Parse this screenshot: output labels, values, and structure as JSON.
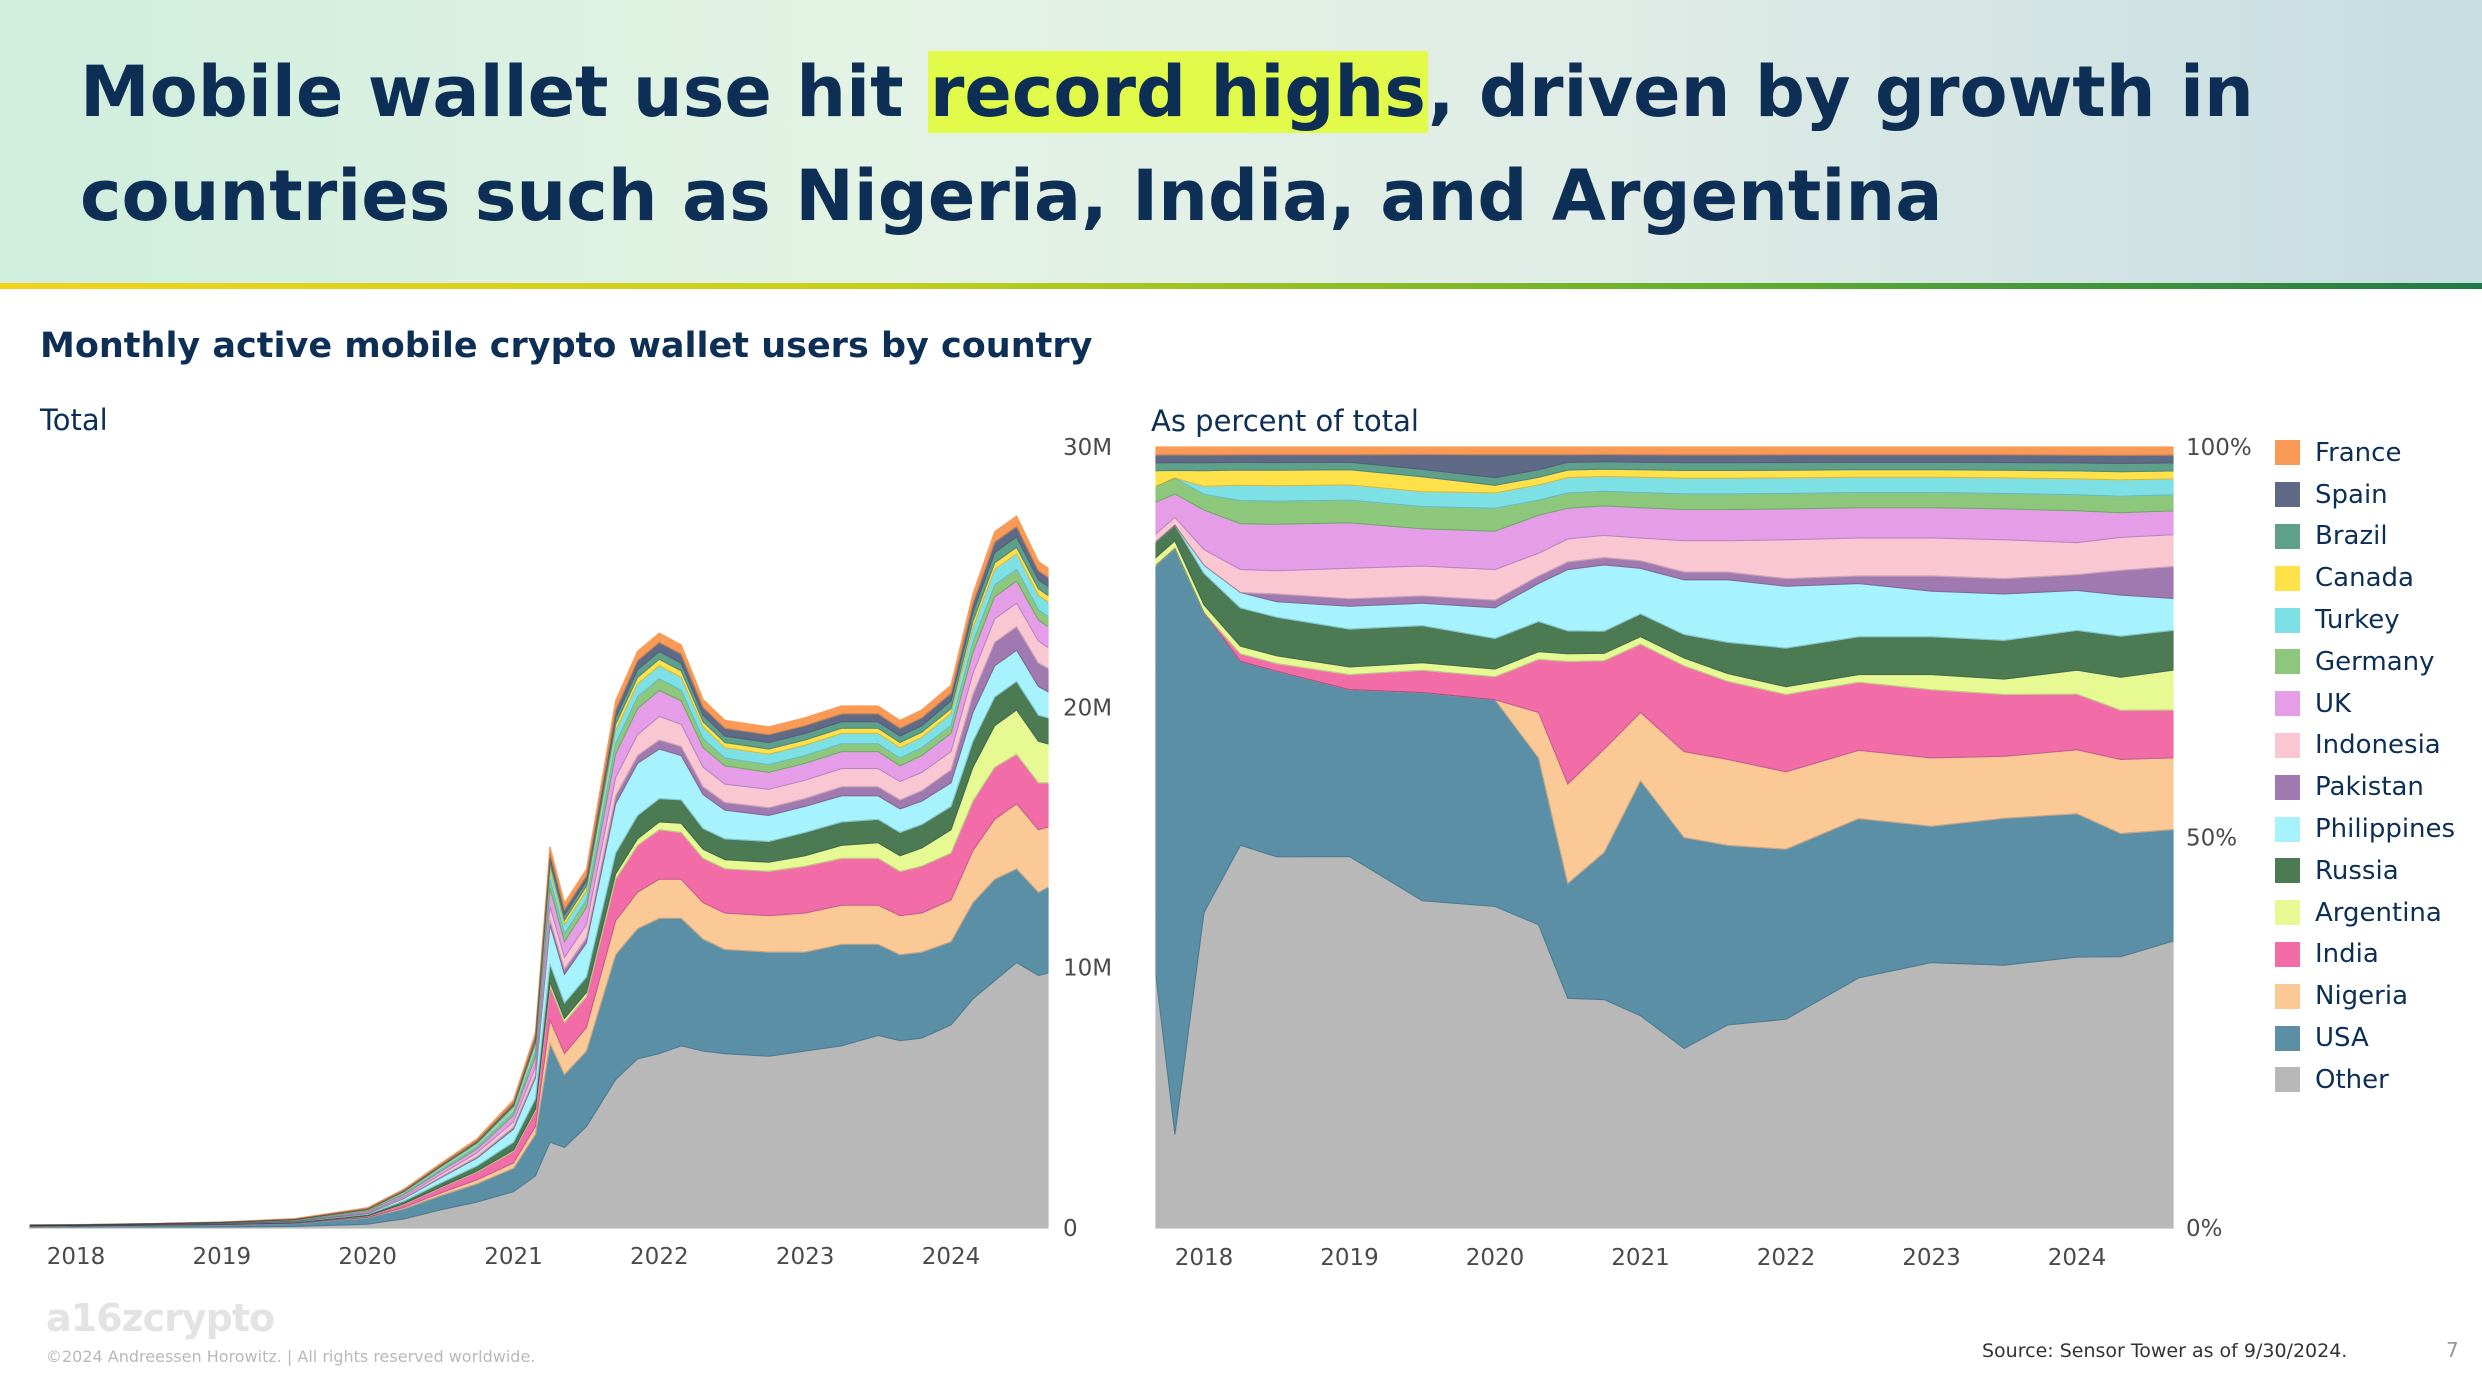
{
  "headline": {
    "before": "Mobile wallet use hit ",
    "highlight": "record highs",
    "after": ", driven by growth in countries such as Nigeria, India, and Argentina"
  },
  "section_title": "Monthly active mobile crypto wallet users by country",
  "footer": {
    "logo": "a16zcrypto",
    "copyright": "©2024 Andreessen Horowitz.  |  All rights reserved worldwide.",
    "source": "Source: Sensor Tower as of 9/30/2024.",
    "page": "7"
  },
  "chart_data": [
    {
      "type": "area",
      "stacked": true,
      "panel_label": "Total",
      "x": [
        2017.6,
        2018.0,
        2018.5,
        2019.0,
        2019.5,
        2020.0,
        2020.25,
        2020.5,
        2020.75,
        2021.0,
        2021.15,
        2021.25,
        2021.35,
        2021.5,
        2021.7,
        2021.85,
        2022.0,
        2022.15,
        2022.3,
        2022.45,
        2022.75,
        2023.0,
        2023.25,
        2023.5,
        2023.65,
        2023.8,
        2024.0,
        2024.15,
        2024.3,
        2024.45,
        2024.6,
        2024.67
      ],
      "xticks": [
        "2018",
        "2019",
        "2020",
        "2021",
        "2022",
        "2023",
        "2024"
      ],
      "yticks": [
        "0",
        "10M",
        "20M",
        "30M"
      ],
      "ylim": [
        0,
        30
      ],
      "y_unit": "millions",
      "y_axis_side": "right",
      "series": [
        {
          "name": "Other",
          "color": "#b8b8b8",
          "values": [
            0.02,
            0.02,
            0.03,
            0.04,
            0.06,
            0.15,
            0.35,
            0.7,
            1.0,
            1.4,
            2.0,
            3.3,
            3.1,
            3.9,
            5.7,
            6.5,
            6.7,
            7.0,
            6.8,
            6.7,
            6.6,
            6.8,
            7.0,
            7.4,
            7.2,
            7.3,
            7.8,
            8.8,
            9.5,
            10.2,
            9.7,
            9.8
          ]
        },
        {
          "name": "USA",
          "color": "#5b8fa6",
          "values": [
            0.05,
            0.06,
            0.07,
            0.09,
            0.12,
            0.25,
            0.4,
            0.55,
            0.7,
            0.9,
            1.6,
            3.8,
            2.8,
            2.9,
            4.8,
            5.0,
            5.2,
            4.9,
            4.3,
            4.0,
            4.0,
            3.8,
            3.9,
            3.5,
            3.3,
            3.3,
            3.2,
            3.7,
            3.9,
            3.6,
            3.2,
            3.3
          ]
        },
        {
          "name": "Nigeria",
          "color": "#fbc995",
          "values": [
            0.0,
            0.0,
            0.0,
            0.0,
            0.0,
            0.01,
            0.05,
            0.1,
            0.15,
            0.2,
            0.3,
            0.9,
            0.8,
            0.9,
            1.3,
            1.4,
            1.5,
            1.5,
            1.4,
            1.4,
            1.4,
            1.5,
            1.5,
            1.5,
            1.5,
            1.5,
            1.6,
            2.0,
            2.3,
            2.5,
            2.4,
            2.3
          ]
        },
        {
          "name": "India",
          "color": "#f26ca7",
          "values": [
            0.0,
            0.0,
            0.01,
            0.01,
            0.02,
            0.05,
            0.12,
            0.2,
            0.3,
            0.45,
            0.6,
            1.3,
            1.2,
            1.2,
            1.6,
            1.8,
            1.9,
            1.8,
            1.7,
            1.7,
            1.7,
            1.8,
            1.8,
            1.8,
            1.7,
            1.8,
            1.8,
            1.9,
            2.0,
            1.9,
            1.8,
            1.7
          ]
        },
        {
          "name": "Argentina",
          "color": "#e7f993",
          "values": [
            0.0,
            0.0,
            0.0,
            0.0,
            0.0,
            0.01,
            0.02,
            0.03,
            0.04,
            0.05,
            0.07,
            0.15,
            0.15,
            0.15,
            0.2,
            0.25,
            0.3,
            0.35,
            0.35,
            0.35,
            0.35,
            0.4,
            0.5,
            0.6,
            0.6,
            0.7,
            0.9,
            1.3,
            1.6,
            1.7,
            1.6,
            1.5
          ]
        },
        {
          "name": "Russia",
          "color": "#4c7a52",
          "values": [
            0.02,
            0.02,
            0.02,
            0.03,
            0.04,
            0.06,
            0.1,
            0.15,
            0.2,
            0.3,
            0.4,
            0.7,
            0.6,
            0.6,
            0.8,
            0.9,
            0.9,
            0.9,
            0.8,
            0.8,
            0.8,
            0.9,
            0.9,
            0.9,
            0.9,
            0.9,
            0.9,
            1.0,
            1.1,
            1.1,
            1.0,
            1.0
          ]
        },
        {
          "name": "Philippines",
          "color": "#a6f2fd",
          "values": [
            0.0,
            0.0,
            0.0,
            0.0,
            0.01,
            0.03,
            0.1,
            0.2,
            0.3,
            0.5,
            0.8,
            1.5,
            1.1,
            1.3,
            1.9,
            2.0,
            1.9,
            1.7,
            1.3,
            1.1,
            1.0,
            1.0,
            1.0,
            0.9,
            0.9,
            0.9,
            0.9,
            1.1,
            1.2,
            1.2,
            1.1,
            1.0
          ]
        },
        {
          "name": "Pakistan",
          "color": "#9f79af",
          "values": [
            0.0,
            0.0,
            0.0,
            0.0,
            0.0,
            0.01,
            0.02,
            0.03,
            0.05,
            0.08,
            0.1,
            0.2,
            0.2,
            0.2,
            0.3,
            0.3,
            0.35,
            0.35,
            0.3,
            0.3,
            0.3,
            0.3,
            0.35,
            0.35,
            0.35,
            0.4,
            0.5,
            0.7,
            0.9,
            0.9,
            0.9,
            0.9
          ]
        },
        {
          "name": "Indonesia",
          "color": "#f9c6d2",
          "values": [
            0.0,
            0.0,
            0.0,
            0.01,
            0.01,
            0.03,
            0.05,
            0.1,
            0.15,
            0.2,
            0.3,
            0.5,
            0.45,
            0.5,
            0.7,
            0.8,
            0.9,
            0.85,
            0.75,
            0.7,
            0.7,
            0.7,
            0.7,
            0.7,
            0.7,
            0.7,
            0.7,
            0.8,
            0.9,
            0.9,
            0.85,
            0.8
          ]
        },
        {
          "name": "UK",
          "color": "#e59de8",
          "values": [
            0.01,
            0.01,
            0.02,
            0.02,
            0.03,
            0.05,
            0.08,
            0.12,
            0.15,
            0.25,
            0.4,
            0.7,
            0.6,
            0.65,
            0.9,
            1.0,
            1.0,
            0.9,
            0.75,
            0.7,
            0.65,
            0.65,
            0.65,
            0.65,
            0.6,
            0.65,
            0.7,
            0.8,
            0.85,
            0.85,
            0.8,
            0.8
          ]
        },
        {
          "name": "Germany",
          "color": "#8dc77c",
          "values": [
            0.01,
            0.01,
            0.01,
            0.01,
            0.02,
            0.03,
            0.04,
            0.06,
            0.08,
            0.12,
            0.2,
            0.35,
            0.3,
            0.3,
            0.4,
            0.45,
            0.45,
            0.4,
            0.35,
            0.3,
            0.3,
            0.3,
            0.3,
            0.3,
            0.3,
            0.3,
            0.3,
            0.4,
            0.45,
            0.45,
            0.4,
            0.4
          ]
        },
        {
          "name": "Turkey",
          "color": "#7de0e5",
          "values": [
            0.0,
            0.0,
            0.0,
            0.0,
            0.01,
            0.02,
            0.05,
            0.08,
            0.1,
            0.15,
            0.25,
            0.4,
            0.35,
            0.35,
            0.5,
            0.5,
            0.5,
            0.5,
            0.45,
            0.4,
            0.4,
            0.4,
            0.4,
            0.4,
            0.4,
            0.4,
            0.45,
            0.55,
            0.6,
            0.6,
            0.55,
            0.55
          ]
        },
        {
          "name": "Canada",
          "color": "#ffe14a",
          "values": [
            0.0,
            0.0,
            0.0,
            0.01,
            0.01,
            0.02,
            0.03,
            0.04,
            0.05,
            0.08,
            0.12,
            0.2,
            0.18,
            0.18,
            0.25,
            0.25,
            0.25,
            0.25,
            0.2,
            0.2,
            0.2,
            0.2,
            0.2,
            0.2,
            0.2,
            0.2,
            0.2,
            0.25,
            0.25,
            0.25,
            0.25,
            0.25
          ]
        },
        {
          "name": "Brazil",
          "color": "#5fa08a",
          "values": [
            0.0,
            0.0,
            0.0,
            0.0,
            0.0,
            0.01,
            0.02,
            0.03,
            0.04,
            0.06,
            0.1,
            0.2,
            0.2,
            0.2,
            0.25,
            0.3,
            0.3,
            0.3,
            0.25,
            0.25,
            0.25,
            0.25,
            0.25,
            0.25,
            0.25,
            0.25,
            0.3,
            0.35,
            0.4,
            0.4,
            0.35,
            0.35
          ]
        },
        {
          "name": "Spain",
          "color": "#5f6b86",
          "values": [
            0.0,
            0.0,
            0.0,
            0.0,
            0.01,
            0.02,
            0.03,
            0.04,
            0.05,
            0.08,
            0.12,
            0.2,
            0.2,
            0.2,
            0.3,
            0.35,
            0.35,
            0.35,
            0.3,
            0.3,
            0.3,
            0.3,
            0.3,
            0.3,
            0.3,
            0.3,
            0.3,
            0.35,
            0.4,
            0.4,
            0.35,
            0.35
          ]
        },
        {
          "name": "France",
          "color": "#f99a57",
          "values": [
            0.01,
            0.01,
            0.01,
            0.01,
            0.02,
            0.03,
            0.04,
            0.05,
            0.07,
            0.1,
            0.15,
            0.25,
            0.25,
            0.25,
            0.35,
            0.35,
            0.35,
            0.35,
            0.3,
            0.3,
            0.3,
            0.3,
            0.3,
            0.3,
            0.3,
            0.3,
            0.3,
            0.35,
            0.4,
            0.4,
            0.35,
            0.35
          ]
        }
      ]
    },
    {
      "type": "area",
      "stacked": true,
      "normalized": true,
      "panel_label": "As percent of total",
      "x": [
        2017.6,
        2017.8,
        2018.0,
        2018.25,
        2018.5,
        2019.0,
        2019.5,
        2020.0,
        2020.3,
        2020.5,
        2020.75,
        2021.0,
        2021.3,
        2021.6,
        2022.0,
        2022.5,
        2023.0,
        2023.5,
        2024.0,
        2024.3,
        2024.67
      ],
      "xticks": [
        "2018",
        "2019",
        "2020",
        "2021",
        "2022",
        "2023",
        "2024"
      ],
      "yticks": [
        "0%",
        "50%",
        "100%"
      ],
      "ylim": [
        0,
        100
      ],
      "y_unit": "percent",
      "y_axis_side": "right",
      "legend_position": "right",
      "series": [
        {
          "name": "Other",
          "color": "#b8b8b8",
          "values": [
            32,
            12,
            40,
            50,
            48,
            49,
            44,
            42,
            40,
            30,
            31,
            28,
            23,
            26,
            27,
            33,
            35,
            34,
            34,
            33,
            36
          ]
        },
        {
          "name": "USA",
          "color": "#5b8fa6",
          "values": [
            52,
            75,
            38,
            24,
            24,
            22,
            28,
            27,
            22,
            15,
            20,
            31,
            27,
            23,
            22,
            21,
            18,
            19,
            18,
            15,
            14
          ]
        },
        {
          "name": "Nigeria",
          "color": "#fbc995",
          "values": [
            0,
            0,
            0,
            0,
            0,
            0,
            0,
            0,
            6,
            13,
            14,
            9,
            11,
            11,
            10,
            9,
            9,
            8,
            8,
            9,
            9
          ]
        },
        {
          "name": "India",
          "color": "#f26ca7",
          "values": [
            0,
            0,
            0,
            1,
            1,
            2,
            3,
            3,
            7,
            16,
            12,
            9,
            11,
            10,
            10,
            9,
            9,
            8,
            7,
            6,
            6
          ]
        },
        {
          "name": "Argentina",
          "color": "#e7f993",
          "values": [
            1,
            1,
            1,
            1,
            1,
            1,
            1,
            1,
            1,
            1,
            1,
            1,
            1,
            1,
            1,
            1,
            2,
            2,
            3,
            4,
            5
          ]
        },
        {
          "name": "Russia",
          "color": "#4c7a52",
          "values": [
            2,
            2,
            4,
            5,
            5,
            5,
            5,
            4,
            4,
            3,
            3,
            3,
            3,
            4,
            5,
            5,
            5,
            5,
            5,
            5,
            5
          ]
        },
        {
          "name": "Philippines",
          "color": "#a6f2fd",
          "values": [
            0,
            0,
            1,
            2,
            2,
            3,
            3,
            4,
            5,
            8,
            9,
            6,
            7,
            8,
            8,
            7,
            6,
            6,
            5,
            5,
            4
          ]
        },
        {
          "name": "Pakistan",
          "color": "#9f79af",
          "values": [
            0,
            0,
            0,
            0,
            1,
            1,
            1,
            1,
            1,
            1,
            1,
            1,
            1,
            1,
            1,
            1,
            2,
            2,
            2,
            3,
            4
          ]
        },
        {
          "name": "Indonesia",
          "color": "#f9c6d2",
          "values": [
            1,
            1,
            2,
            3,
            3,
            4,
            4,
            4,
            3,
            3,
            3,
            3,
            4,
            4,
            5,
            5,
            5,
            5,
            4,
            4,
            4
          ]
        },
        {
          "name": "UK",
          "color": "#e59de8",
          "values": [
            4,
            3,
            5,
            6,
            6,
            6,
            5,
            5,
            5,
            4,
            4,
            4,
            4,
            4,
            4,
            4,
            4,
            4,
            4,
            3,
            3
          ]
        },
        {
          "name": "Germany",
          "color": "#8dc77c",
          "values": [
            2,
            2,
            2,
            3,
            3,
            3,
            3,
            3,
            2,
            2,
            2,
            2,
            2,
            2,
            2,
            2,
            2,
            2,
            2,
            2,
            2
          ]
        },
        {
          "name": "Turkey",
          "color": "#7de0e5",
          "values": [
            0,
            0,
            1,
            2,
            2,
            2,
            2,
            2,
            2,
            2,
            2,
            2,
            2,
            2,
            2,
            2,
            2,
            2,
            2,
            2,
            2
          ]
        },
        {
          "name": "Canada",
          "color": "#ffe14a",
          "values": [
            2,
            1,
            2,
            2,
            2,
            2,
            2,
            1,
            1,
            1,
            1,
            1,
            1,
            1,
            1,
            1,
            1,
            1,
            1,
            1,
            1
          ]
        },
        {
          "name": "Brazil",
          "color": "#5fa08a",
          "values": [
            1,
            1,
            1,
            1,
            1,
            1,
            1,
            1,
            1,
            1,
            1,
            1,
            1,
            1,
            1,
            1,
            1,
            1,
            1,
            1,
            1
          ]
        },
        {
          "name": "Spain",
          "color": "#5f6b86",
          "values": [
            1,
            1,
            1,
            1,
            1,
            1,
            2,
            3,
            2,
            1,
            1,
            1,
            1,
            1,
            1,
            1,
            1,
            1,
            1,
            1,
            1
          ]
        },
        {
          "name": "France",
          "color": "#f99a57",
          "values": [
            1,
            1,
            1,
            1,
            1,
            1,
            1,
            1,
            1,
            1,
            1,
            1,
            1,
            1,
            1,
            1,
            1,
            1,
            1,
            1,
            1
          ]
        }
      ]
    }
  ]
}
